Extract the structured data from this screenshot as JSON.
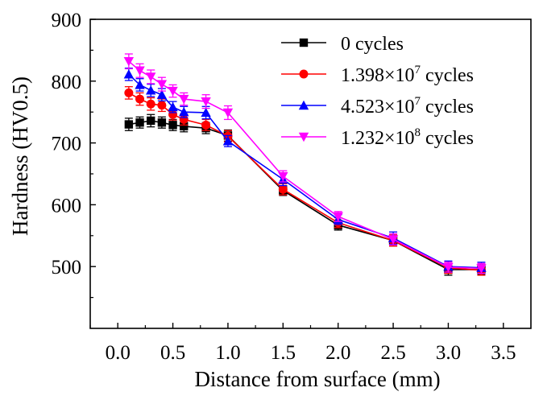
{
  "chart_data": {
    "type": "line",
    "xlabel": "Distance from surface (mm)",
    "ylabel": "Hardness (HV0.5)",
    "xlim": [
      -0.25,
      3.75
    ],
    "ylim": [
      400,
      900
    ],
    "xticks": [
      "0.0",
      "0.5",
      "1.0",
      "1.5",
      "2.0",
      "2.5",
      "3.0",
      "3.5"
    ],
    "yticks": [
      "500",
      "600",
      "700",
      "800",
      "900"
    ],
    "legend_position": "top-right",
    "series": [
      {
        "name": "0 cycles",
        "legend_base": "0 cycles",
        "legend_exp": "",
        "legend_suffix": "",
        "color": "#000000",
        "marker": "square",
        "points": [
          {
            "x": 0.1,
            "y": 730,
            "err": 10
          },
          {
            "x": 0.2,
            "y": 733,
            "err": 9
          },
          {
            "x": 0.3,
            "y": 736,
            "err": 10
          },
          {
            "x": 0.4,
            "y": 733,
            "err": 9
          },
          {
            "x": 0.5,
            "y": 729,
            "err": 9
          },
          {
            "x": 0.6,
            "y": 727,
            "err": 9
          },
          {
            "x": 0.8,
            "y": 724,
            "err": 9
          },
          {
            "x": 1.0,
            "y": 712,
            "err": 9
          },
          {
            "x": 1.5,
            "y": 623,
            "err": 8
          },
          {
            "x": 2.0,
            "y": 567,
            "err": 8
          },
          {
            "x": 2.5,
            "y": 542,
            "err": 9
          },
          {
            "x": 3.0,
            "y": 495,
            "err": 9
          },
          {
            "x": 3.3,
            "y": 495,
            "err": 8
          }
        ]
      },
      {
        "name": "1.398×10^7 cycles",
        "legend_base": "1.398×10",
        "legend_exp": "7",
        "legend_suffix": " cycles",
        "color": "#ff0000",
        "marker": "circle",
        "points": [
          {
            "x": 0.1,
            "y": 781,
            "err": 10
          },
          {
            "x": 0.2,
            "y": 771,
            "err": 10
          },
          {
            "x": 0.3,
            "y": 763,
            "err": 10
          },
          {
            "x": 0.4,
            "y": 761,
            "err": 10
          },
          {
            "x": 0.5,
            "y": 746,
            "err": 9
          },
          {
            "x": 0.6,
            "y": 738,
            "err": 9
          },
          {
            "x": 0.8,
            "y": 729,
            "err": 9
          },
          {
            "x": 1.0,
            "y": 711,
            "err": 9
          },
          {
            "x": 1.5,
            "y": 625,
            "err": 9
          },
          {
            "x": 2.0,
            "y": 571,
            "err": 8
          },
          {
            "x": 2.5,
            "y": 542,
            "err": 9
          },
          {
            "x": 3.0,
            "y": 498,
            "err": 9
          },
          {
            "x": 3.3,
            "y": 494,
            "err": 8
          }
        ]
      },
      {
        "name": "4.523×10^7 cycles",
        "legend_base": "4.523×10",
        "legend_exp": "7",
        "legend_suffix": " cycles",
        "color": "#0000ff",
        "marker": "triangle-up",
        "points": [
          {
            "x": 0.1,
            "y": 811,
            "err": 10
          },
          {
            "x": 0.2,
            "y": 794,
            "err": 10
          },
          {
            "x": 0.3,
            "y": 785,
            "err": 10
          },
          {
            "x": 0.4,
            "y": 778,
            "err": 10
          },
          {
            "x": 0.5,
            "y": 758,
            "err": 9
          },
          {
            "x": 0.6,
            "y": 750,
            "err": 9
          },
          {
            "x": 0.8,
            "y": 749,
            "err": 10
          },
          {
            "x": 1.0,
            "y": 703,
            "err": 9
          },
          {
            "x": 1.5,
            "y": 641,
            "err": 10
          },
          {
            "x": 2.0,
            "y": 576,
            "err": 8
          },
          {
            "x": 2.5,
            "y": 546,
            "err": 10
          },
          {
            "x": 3.0,
            "y": 500,
            "err": 9
          },
          {
            "x": 3.3,
            "y": 498,
            "err": 9
          }
        ]
      },
      {
        "name": "1.232×10^8 cycles",
        "legend_base": "1.232×10",
        "legend_exp": "8",
        "legend_suffix": " cycles",
        "color": "#ff00ff",
        "marker": "triangle-down",
        "points": [
          {
            "x": 0.1,
            "y": 832,
            "err": 12
          },
          {
            "x": 0.2,
            "y": 817,
            "err": 11
          },
          {
            "x": 0.3,
            "y": 807,
            "err": 11
          },
          {
            "x": 0.4,
            "y": 795,
            "err": 11
          },
          {
            "x": 0.5,
            "y": 784,
            "err": 10
          },
          {
            "x": 0.6,
            "y": 771,
            "err": 10
          },
          {
            "x": 0.8,
            "y": 767,
            "err": 11
          },
          {
            "x": 1.0,
            "y": 749,
            "err": 11
          },
          {
            "x": 1.5,
            "y": 646,
            "err": 9
          },
          {
            "x": 2.0,
            "y": 581,
            "err": 8
          },
          {
            "x": 2.5,
            "y": 544,
            "err": 9
          },
          {
            "x": 3.0,
            "y": 499,
            "err": 8
          },
          {
            "x": 3.3,
            "y": 497,
            "err": 8
          }
        ]
      }
    ]
  }
}
